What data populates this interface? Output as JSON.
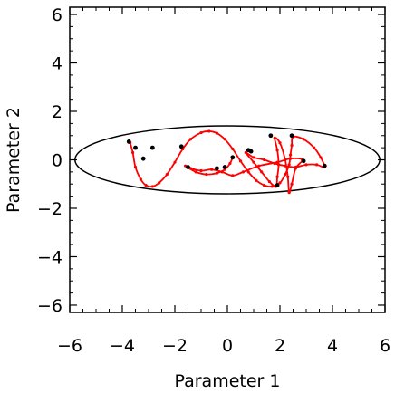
{
  "chart_data": {
    "type": "scatter",
    "xlabel": "Parameter 1",
    "ylabel": "Parameter 2",
    "xlim": [
      -6,
      6
    ],
    "ylim": [
      -6.3,
      6.3
    ],
    "x_ticks": [
      -6,
      -4,
      -2,
      0,
      2,
      4,
      6
    ],
    "y_ticks": [
      -6,
      -4,
      -2,
      0,
      2,
      4,
      6
    ],
    "x_tick_labels": [
      "−6",
      "−4",
      "−2",
      "0",
      "2",
      "4",
      "6"
    ],
    "y_tick_labels": [
      "−6",
      "−4",
      "−2",
      "0",
      "2",
      "4",
      "6"
    ],
    "grid": false,
    "colors": {
      "trajectory": "#ff0000",
      "points": "#000000",
      "ellipse": "#000000",
      "axes": "#000000"
    },
    "ellipse": {
      "center": [
        0,
        0
      ],
      "semi_axis_x": 5.8,
      "semi_axis_y": 1.4
    },
    "trajectory": [
      [
        -3.7,
        0.7
      ],
      [
        -3.6,
        0.3
      ],
      [
        -3.5,
        -0.3
      ],
      [
        -3.3,
        -0.8
      ],
      [
        -3.1,
        -1.05
      ],
      [
        -2.85,
        -1.1
      ],
      [
        -2.6,
        -0.95
      ],
      [
        -2.3,
        -0.6
      ],
      [
        -2.0,
        -0.1
      ],
      [
        -1.7,
        0.45
      ],
      [
        -1.4,
        0.85
      ],
      [
        -1.0,
        1.12
      ],
      [
        -0.7,
        1.18
      ],
      [
        -0.4,
        1.1
      ],
      [
        -0.1,
        0.85
      ],
      [
        0.2,
        0.45
      ],
      [
        0.5,
        -0.05
      ],
      [
        0.8,
        -0.5
      ],
      [
        1.1,
        -0.85
      ],
      [
        1.4,
        -1.05
      ],
      [
        1.7,
        -1.1
      ],
      [
        2.0,
        -0.95
      ],
      [
        2.2,
        -0.6
      ],
      [
        2.35,
        -0.2
      ],
      [
        2.4,
        0.2
      ],
      [
        2.45,
        0.6
      ],
      [
        2.5,
        0.95
      ],
      [
        2.9,
        0.85
      ],
      [
        3.3,
        0.5
      ],
      [
        3.55,
        0.1
      ],
      [
        3.7,
        -0.3
      ],
      [
        3.4,
        -0.2
      ],
      [
        3.0,
        -0.2
      ],
      [
        2.6,
        -0.3
      ],
      [
        2.2,
        -0.25
      ],
      [
        1.8,
        -0.15
      ],
      [
        1.4,
        0.0
      ],
      [
        1.0,
        0.1
      ],
      [
        0.7,
        0.3
      ],
      [
        1.0,
        -0.1
      ],
      [
        1.3,
        -0.5
      ],
      [
        1.6,
        -0.9
      ],
      [
        1.85,
        -1.1
      ],
      [
        1.9,
        -0.7
      ],
      [
        1.95,
        -0.2
      ],
      [
        1.9,
        0.4
      ],
      [
        1.8,
        0.9
      ],
      [
        2.0,
        0.7
      ],
      [
        2.2,
        0.0
      ],
      [
        2.3,
        -0.7
      ],
      [
        2.35,
        -1.35
      ],
      [
        2.45,
        -1.0
      ],
      [
        2.6,
        -0.35
      ],
      [
        2.85,
        0.0
      ],
      [
        2.4,
        0.05
      ],
      [
        1.9,
        -0.1
      ],
      [
        1.2,
        -0.25
      ],
      [
        0.6,
        -0.5
      ],
      [
        0.2,
        -0.65
      ],
      [
        -0.2,
        -0.5
      ],
      [
        -0.6,
        -0.4
      ],
      [
        -1.0,
        -0.45
      ],
      [
        -1.4,
        -0.35
      ],
      [
        -1.6,
        -0.25
      ],
      [
        -1.2,
        -0.5
      ],
      [
        -0.8,
        -0.6
      ],
      [
        -0.4,
        -0.55
      ],
      [
        -0.1,
        -0.4
      ],
      [
        0.1,
        -0.15
      ],
      [
        0.2,
        0.1
      ]
    ],
    "markers": [
      [
        -3.75,
        0.75
      ],
      [
        -3.2,
        0.05
      ],
      [
        -2.85,
        0.5
      ],
      [
        -3.5,
        0.5
      ],
      [
        -1.75,
        0.55
      ],
      [
        -1.5,
        -0.3
      ],
      [
        -0.1,
        -0.3
      ],
      [
        0.2,
        0.1
      ],
      [
        0.8,
        0.4
      ],
      [
        1.65,
        1.0
      ],
      [
        2.45,
        1.0
      ],
      [
        1.9,
        -1.05
      ],
      [
        2.9,
        -0.05
      ],
      [
        3.7,
        -0.25
      ],
      [
        -0.4,
        -0.35
      ],
      [
        0.9,
        0.35
      ]
    ]
  }
}
